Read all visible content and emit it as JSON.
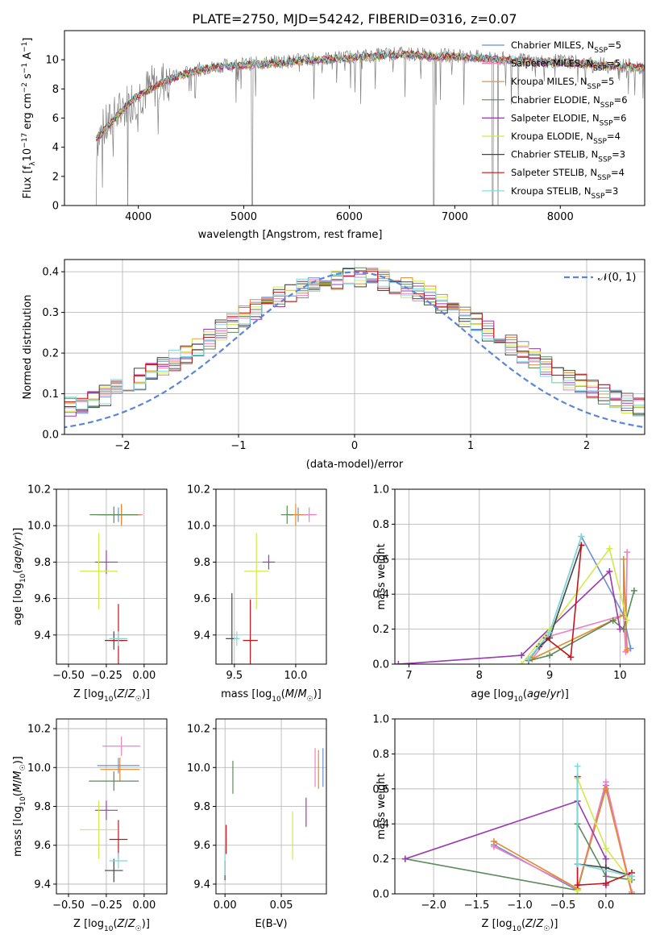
{
  "figure_title": "PLATE=2750, MJD=54242, FIBERID=0316, z=0.07",
  "colors": {
    "chabrier_miles": "#6b8fd6",
    "salpeter_miles": "#f07fc0",
    "kroupa_miles": "#e6892a",
    "chabrier_elodie": "#5b8a5b",
    "salpeter_elodie": "#9a3bb0",
    "kroupa_elodie": "#d4e84a",
    "chabrier_stelib": "#444444",
    "salpeter_stelib": "#c0151b",
    "kroupa_stelib": "#7fd8dc",
    "data": "#808080",
    "normal": "#5b86d6"
  },
  "chart_data": [
    {
      "id": "spectrum",
      "type": "line",
      "title": "PLATE=2750, MJD=54242, FIBERID=0316, z=0.07",
      "xlabel": "wavelength [Angstrom, rest frame]",
      "ylabel": "Flux [f_λ 10^-17 erg cm^-2 s^-1 A^-1]",
      "xlim": [
        3300,
        8800
      ],
      "ylim": [
        0,
        12
      ],
      "xticks": [
        4000,
        5000,
        6000,
        7000,
        8000
      ],
      "yticks": [
        0,
        2,
        4,
        6,
        8,
        10
      ],
      "legend_position": "right",
      "legend": [
        "Chabrier MILES, N_SSP=5",
        "Salpeter MILES, N_SSP=5",
        "Kroupa MILES, N_SSP=5",
        "Chabrier ELODIE, N_SSP=6",
        "Salpeter ELODIE, N_SSP=6",
        "Kroupa ELODIE, N_SSP=4",
        "Chabrier STELIB, N_SSP=3",
        "Salpeter STELIB, N_SSP=4",
        "Kroupa STELIB, N_SSP=3"
      ],
      "continuum": [
        [
          3600,
          4.6
        ],
        [
          3700,
          5.4
        ],
        [
          3800,
          6.2
        ],
        [
          3900,
          7.0
        ],
        [
          4000,
          7.6
        ],
        [
          4200,
          8.4
        ],
        [
          4400,
          9.0
        ],
        [
          4600,
          9.4
        ],
        [
          4800,
          9.6
        ],
        [
          5000,
          9.7
        ],
        [
          5200,
          9.8
        ],
        [
          5400,
          9.9
        ],
        [
          5600,
          10.0
        ],
        [
          5800,
          10.1
        ],
        [
          6000,
          10.2
        ],
        [
          6200,
          10.3
        ],
        [
          6400,
          10.4
        ],
        [
          6600,
          10.4
        ],
        [
          6800,
          10.3
        ],
        [
          7000,
          10.3
        ],
        [
          7200,
          10.2
        ],
        [
          7400,
          10.1
        ],
        [
          7600,
          10.0
        ],
        [
          7800,
          9.9
        ],
        [
          8000,
          9.9
        ],
        [
          8200,
          9.8
        ],
        [
          8400,
          9.7
        ],
        [
          8600,
          9.6
        ],
        [
          8800,
          9.5
        ]
      ],
      "dropouts": [
        3600,
        3900,
        5080,
        6800,
        7360,
        7410
      ]
    },
    {
      "id": "residuals",
      "type": "line",
      "xlabel": "(data-model)/error",
      "ylabel": "Normed distribution",
      "xlim": [
        -2.5,
        2.5
      ],
      "ylim": [
        0,
        0.43
      ],
      "xticks": [
        -2,
        -1,
        0,
        1,
        2
      ],
      "yticks": [
        0,
        0.1,
        0.2,
        0.3,
        0.4
      ],
      "normal_label": "𝒩(0, 1)",
      "legend_position": "top-right"
    },
    {
      "id": "age_vs_Z",
      "type": "scatter",
      "xlabel": "Z [log10(Z/Z☉)]",
      "ylabel": "age [log10(age/yr)]",
      "xlim": [
        -0.58,
        0.15
      ],
      "ylim": [
        9.24,
        10.2
      ],
      "xticks": [
        -0.5,
        -0.25,
        0.0
      ],
      "xticklabels": [
        "−0.50",
        "−0.25",
        "0.00"
      ],
      "yticks": [
        9.4,
        9.6,
        9.8,
        10.0,
        10.2
      ],
      "points": [
        {
          "s": "chabrier_miles",
          "x": -0.17,
          "xe": 0.28,
          "y": 10.06,
          "ye": 0.08
        },
        {
          "s": "salpeter_miles",
          "x": -0.15,
          "xe": 0.28,
          "y": 10.06,
          "ye": 0.1
        },
        {
          "s": "kroupa_miles",
          "x": -0.15,
          "xe": 0.25,
          "y": 10.06,
          "ye": 0.12
        },
        {
          "s": "chabrier_elodie",
          "x": -0.2,
          "xe": 0.32,
          "y": 10.06,
          "ye": 0.09
        },
        {
          "s": "salpeter_elodie",
          "x": -0.25,
          "xe": 0.15,
          "y": 9.8,
          "ye": 0.13
        },
        {
          "s": "kroupa_elodie",
          "x": -0.3,
          "xe": 0.25,
          "y": 9.75,
          "ye": 0.42
        },
        {
          "s": "chabrier_stelib",
          "x": -0.2,
          "xe": 0.12,
          "y": 9.37,
          "ye": 0.1
        },
        {
          "s": "salpeter_stelib",
          "x": -0.17,
          "xe": 0.12,
          "y": 9.37,
          "ye": 0.4
        },
        {
          "s": "kroupa_stelib",
          "x": -0.17,
          "xe": 0.12,
          "y": 9.38,
          "ye": 0.08
        }
      ]
    },
    {
      "id": "age_vs_mass",
      "type": "scatter",
      "xlabel": "mass [log10(M/M☉)]",
      "xlim": [
        9.35,
        10.25
      ],
      "ylim": [
        9.24,
        10.2
      ],
      "xticks": [
        9.5,
        10.0
      ],
      "xticklabels": [
        "9.5",
        "10.0"
      ],
      "yticks": [
        9.4,
        9.6,
        9.8,
        10.0,
        10.2
      ],
      "points": [
        {
          "s": "chabrier_miles",
          "x": 10.02,
          "xe": 0.15,
          "y": 10.06,
          "ye": 0.08
        },
        {
          "s": "salpeter_miles",
          "x": 10.11,
          "xe": 0.12,
          "y": 10.06,
          "ye": 0.08
        },
        {
          "s": "kroupa_miles",
          "x": 10.0,
          "xe": 0.12,
          "y": 10.06,
          "ye": 0.12
        },
        {
          "s": "chabrier_elodie",
          "x": 9.93,
          "xe": 0.1,
          "y": 10.06,
          "ye": 0.1
        },
        {
          "s": "salpeter_elodie",
          "x": 9.78,
          "xe": 0.1,
          "y": 9.8,
          "ye": 0.08
        },
        {
          "s": "kroupa_elodie",
          "x": 9.68,
          "xe": 0.2,
          "y": 9.75,
          "ye": 0.42
        },
        {
          "s": "chabrier_stelib",
          "x": 9.48,
          "xe": 0.1,
          "y": 9.38,
          "ye": 0.5
        },
        {
          "s": "salpeter_stelib",
          "x": 9.63,
          "xe": 0.12,
          "y": 9.37,
          "ye": 0.45
        },
        {
          "s": "kroupa_stelib",
          "x": 9.52,
          "xe": 0.05,
          "y": 9.38,
          "ye": 0.08
        }
      ]
    },
    {
      "id": "weight_vs_age",
      "type": "line",
      "xlabel": "age [log10(age/yr)]",
      "ylabel": "mass weight",
      "xlim": [
        6.8,
        10.35
      ],
      "ylim": [
        0,
        1.0
      ],
      "xticks": [
        7,
        8,
        9,
        10
      ],
      "yticks": [
        0.0,
        0.2,
        0.4,
        0.6,
        0.8,
        1.0
      ],
      "series": [
        {
          "s": "chabrier_miles",
          "pts": [
            [
              8.7,
              0.02
            ],
            [
              9.0,
              0.18
            ],
            [
              9.45,
              0.73
            ],
            [
              10.05,
              0.28
            ],
            [
              10.15,
              0.09
            ]
          ]
        },
        {
          "s": "salpeter_miles",
          "pts": [
            [
              8.75,
              0.03
            ],
            [
              9.0,
              0.16
            ],
            [
              10.05,
              0.28
            ],
            [
              10.08,
              0.07
            ],
            [
              10.1,
              0.64
            ]
          ]
        },
        {
          "s": "kroupa_miles",
          "pts": [
            [
              8.75,
              0.03
            ],
            [
              10.05,
              0.28
            ],
            [
              10.05,
              0.6
            ],
            [
              10.1,
              0.08
            ]
          ]
        },
        {
          "s": "chabrier_elodie",
          "pts": [
            [
              8.7,
              0.02
            ],
            [
              9.0,
              0.05
            ],
            [
              9.9,
              0.25
            ],
            [
              10.05,
              0.2
            ],
            [
              10.2,
              0.42
            ]
          ]
        },
        {
          "s": "salpeter_elodie",
          "pts": [
            [
              6.85,
              0.0
            ],
            [
              8.6,
              0.05
            ],
            [
              9.85,
              0.53
            ],
            [
              10.0,
              0.2
            ]
          ]
        },
        {
          "s": "kroupa_elodie",
          "pts": [
            [
              8.6,
              0.0
            ],
            [
              9.0,
              0.2
            ],
            [
              9.85,
              0.66
            ],
            [
              10.1,
              0.25
            ]
          ]
        },
        {
          "s": "chabrier_stelib",
          "pts": [
            [
              8.85,
              0.1
            ],
            [
              9.0,
              0.15
            ],
            [
              9.45,
              0.68
            ]
          ]
        },
        {
          "s": "salpeter_stelib",
          "pts": [
            [
              8.95,
              0.15
            ],
            [
              9.3,
              0.04
            ],
            [
              9.45,
              0.68
            ]
          ]
        },
        {
          "s": "kroupa_stelib",
          "pts": [
            [
              8.7,
              0.03
            ],
            [
              9.0,
              0.18
            ],
            [
              9.45,
              0.73
            ]
          ]
        }
      ]
    },
    {
      "id": "mass_vs_Z",
      "type": "scatter",
      "xlabel": "Z [log10(Z/Z☉)]",
      "ylabel": "mass [log10(M/M☉)]",
      "xlim": [
        -0.58,
        0.15
      ],
      "ylim": [
        9.35,
        10.25
      ],
      "xticks": [
        -0.5,
        -0.25,
        0.0
      ],
      "xticklabels": [
        "−0.50",
        "−0.25",
        "0.00"
      ],
      "yticks": [
        9.4,
        9.6,
        9.8,
        10.0,
        10.2
      ],
      "points": [
        {
          "s": "chabrier_miles",
          "x": -0.17,
          "xe": 0.28,
          "y": 10.01,
          "ye": 0.08
        },
        {
          "s": "salpeter_miles",
          "x": -0.15,
          "xe": 0.25,
          "y": 10.11,
          "ye": 0.1
        },
        {
          "s": "kroupa_miles",
          "x": -0.16,
          "xe": 0.26,
          "y": 9.99,
          "ye": 0.12
        },
        {
          "s": "chabrier_elodie",
          "x": -0.2,
          "xe": 0.33,
          "y": 9.93,
          "ye": 0.1
        },
        {
          "s": "salpeter_elodie",
          "x": -0.25,
          "xe": 0.15,
          "y": 9.78,
          "ye": 0.1
        },
        {
          "s": "kroupa_elodie",
          "x": -0.3,
          "xe": 0.25,
          "y": 9.68,
          "ye": 0.3
        },
        {
          "s": "chabrier_stelib",
          "x": -0.2,
          "xe": 0.12,
          "y": 9.47,
          "ye": 0.12
        },
        {
          "s": "salpeter_stelib",
          "x": -0.17,
          "xe": 0.12,
          "y": 9.63,
          "ye": 0.2
        },
        {
          "s": "kroupa_stelib",
          "x": -0.17,
          "xe": 0.12,
          "y": 9.52,
          "ye": 0.08
        }
      ]
    },
    {
      "id": "mass_vs_ebv",
      "type": "scatter",
      "xlabel": "E(B-V)",
      "xlim": [
        -0.008,
        0.09
      ],
      "ylim": [
        9.35,
        10.25
      ],
      "xticks": [
        0.0,
        0.05
      ],
      "xticklabels": [
        "0.00",
        "0.05"
      ],
      "yticks": [
        9.4,
        9.6,
        9.8,
        10.0,
        10.2
      ],
      "points": [
        {
          "s": "chabrier_miles",
          "x": 0.087,
          "ye": 0.2,
          "y": 10.0
        },
        {
          "s": "salpeter_miles",
          "x": 0.08,
          "ye": 0.2,
          "y": 10.0
        },
        {
          "s": "kroupa_miles",
          "x": 0.083,
          "ye": 0.2,
          "y": 9.99
        },
        {
          "s": "chabrier_elodie",
          "x": 0.007,
          "ye": 0.17,
          "y": 9.95
        },
        {
          "s": "salpeter_elodie",
          "x": 0.072,
          "ye": 0.15,
          "y": 9.77
        },
        {
          "s": "kroupa_elodie",
          "x": 0.06,
          "ye": 0.25,
          "y": 9.65
        },
        {
          "s": "chabrier_stelib",
          "x": 0.0,
          "ye": 0.1,
          "y": 9.47
        },
        {
          "s": "salpeter_stelib",
          "x": 0.001,
          "ye": 0.15,
          "y": 9.63
        },
        {
          "s": "kroupa_stelib",
          "x": 0.0,
          "ye": 0.15,
          "y": 9.52
        }
      ]
    },
    {
      "id": "weight_vs_Z",
      "type": "line",
      "xlabel": "Z [log10(Z/Z☉)]",
      "ylabel": "mass weight",
      "xlim": [
        -2.45,
        0.45
      ],
      "ylim": [
        0,
        1.0
      ],
      "xticks": [
        -2.0,
        -1.5,
        -1.0,
        -0.5,
        0.0
      ],
      "xticklabels": [
        "−2.0",
        "−1.5",
        "−1.0",
        "−0.5",
        "0.0"
      ],
      "yticks": [
        0.0,
        0.2,
        0.4,
        0.6,
        0.8,
        1.0
      ],
      "series": [
        {
          "s": "chabrier_miles",
          "pts": [
            [
              -1.3,
              0.28
            ],
            [
              -0.33,
              0.02
            ],
            [
              0.0,
              0.62
            ],
            [
              0.3,
              0.0
            ]
          ]
        },
        {
          "s": "salpeter_miles",
          "pts": [
            [
              -1.3,
              0.27
            ],
            [
              -0.33,
              0.03
            ],
            [
              0.0,
              0.64
            ],
            [
              0.3,
              0.01
            ]
          ]
        },
        {
          "s": "kroupa_miles",
          "pts": [
            [
              -1.3,
              0.3
            ],
            [
              -0.33,
              0.03
            ],
            [
              0.0,
              0.6
            ],
            [
              0.3,
              0.0
            ]
          ]
        },
        {
          "s": "chabrier_elodie",
          "pts": [
            [
              -2.33,
              0.2
            ],
            [
              -0.33,
              0.02
            ],
            [
              -0.33,
              0.4
            ],
            [
              0.0,
              0.1
            ],
            [
              0.3,
              0.08
            ]
          ]
        },
        {
          "s": "salpeter_elodie",
          "pts": [
            [
              -2.33,
              0.2
            ],
            [
              -0.33,
              0.53
            ],
            [
              0.0,
              0.2
            ],
            [
              0.0,
              0.05
            ]
          ]
        },
        {
          "s": "kroupa_elodie",
          "pts": [
            [
              -0.33,
              0.02
            ],
            [
              -0.33,
              0.66
            ],
            [
              0.0,
              0.26
            ],
            [
              0.28,
              0.08
            ]
          ]
        },
        {
          "s": "chabrier_stelib",
          "pts": [
            [
              -0.33,
              0.17
            ],
            [
              0.0,
              0.15
            ],
            [
              0.3,
              0.1
            ]
          ]
        },
        {
          "s": "salpeter_stelib",
          "pts": [
            [
              -0.33,
              0.67
            ],
            [
              -0.33,
              0.05
            ],
            [
              0.0,
              0.06
            ],
            [
              0.3,
              0.12
            ]
          ]
        },
        {
          "s": "kroupa_stelib",
          "pts": [
            [
              -0.33,
              0.73
            ],
            [
              -0.33,
              0.17
            ],
            [
              0.3,
              0.1
            ]
          ]
        }
      ]
    }
  ]
}
